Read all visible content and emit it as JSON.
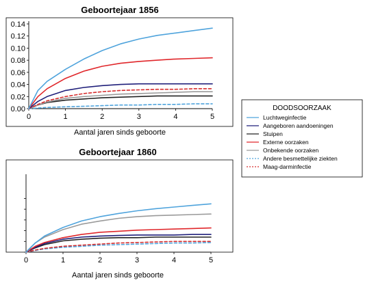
{
  "chart_data": [
    {
      "type": "line",
      "title": "Geboortejaar 1856",
      "xlabel": "Aantal jaren sinds geboorte",
      "ylabel": "",
      "xlim": [
        0,
        5
      ],
      "ylim": [
        0,
        0.14
      ],
      "xticks": [
        "0",
        "1",
        "2",
        "3",
        "4",
        "5"
      ],
      "yticks": [
        "0.00",
        "0.02",
        "0.04",
        "0.06",
        "0.08",
        "0.10",
        "0.12",
        "0.14"
      ],
      "x": [
        0,
        0.25,
        0.5,
        1,
        1.5,
        2,
        2.5,
        3,
        3.5,
        4,
        4.5,
        5
      ],
      "series": [
        {
          "name": "Luchtweginfectie",
          "color": "#4ea3dc",
          "dash": "solid",
          "values": [
            0,
            0.03,
            0.045,
            0.065,
            0.082,
            0.096,
            0.107,
            0.115,
            0.121,
            0.125,
            0.129,
            0.133
          ]
        },
        {
          "name": "Externe oorzaken",
          "color": "#e0262a",
          "dash": "solid",
          "values": [
            0,
            0.02,
            0.033,
            0.05,
            0.062,
            0.07,
            0.075,
            0.078,
            0.08,
            0.082,
            0.083,
            0.084
          ]
        },
        {
          "name": "Aangeboren aandoeningen",
          "color": "#1f1f7a",
          "dash": "solid",
          "values": [
            0,
            0.012,
            0.02,
            0.03,
            0.035,
            0.038,
            0.04,
            0.041,
            0.041,
            0.041,
            0.041,
            0.041
          ]
        },
        {
          "name": "Maag-darminfectie",
          "color": "#d62c2c",
          "dash": "dashed",
          "values": [
            0,
            0.007,
            0.013,
            0.02,
            0.025,
            0.028,
            0.03,
            0.031,
            0.032,
            0.032,
            0.033,
            0.033
          ]
        },
        {
          "name": "Onbekende oorzaken",
          "color": "#9a9a9a",
          "dash": "solid",
          "values": [
            0,
            0.006,
            0.011,
            0.017,
            0.02,
            0.022,
            0.024,
            0.025,
            0.026,
            0.027,
            0.028,
            0.028
          ]
        },
        {
          "name": "Stuipen",
          "color": "#222222",
          "dash": "solid",
          "values": [
            0,
            0.006,
            0.01,
            0.014,
            0.016,
            0.018,
            0.019,
            0.02,
            0.021,
            0.021,
            0.021,
            0.021
          ]
        },
        {
          "name": "Andere besmettelijke ziekten",
          "color": "#4ea3dc",
          "dash": "dashed",
          "values": [
            0,
            0.001,
            0.002,
            0.003,
            0.004,
            0.005,
            0.006,
            0.006,
            0.007,
            0.007,
            0.008,
            0.008
          ]
        }
      ]
    },
    {
      "type": "line",
      "title": "Geboortejaar 1860",
      "xlabel": "Aantal jaren sinds geboorte",
      "ylabel": "",
      "xlim": [
        0,
        5
      ],
      "ylim": [
        0,
        0.14
      ],
      "xticks": [
        "0",
        "1",
        "2",
        "3",
        "4",
        "5"
      ],
      "yticks": [],
      "x": [
        0,
        0.25,
        0.5,
        1,
        1.5,
        2,
        2.5,
        3,
        3.5,
        4,
        4.5,
        5
      ],
      "series": [
        {
          "name": "Luchtweginfectie",
          "color": "#4ea3dc",
          "dash": "solid",
          "values": [
            0,
            0.017,
            0.03,
            0.046,
            0.058,
            0.066,
            0.072,
            0.077,
            0.081,
            0.084,
            0.087,
            0.09
          ]
        },
        {
          "name": "Onbekende oorzaken",
          "color": "#9a9a9a",
          "dash": "solid",
          "values": [
            0,
            0.017,
            0.028,
            0.042,
            0.052,
            0.058,
            0.063,
            0.066,
            0.068,
            0.069,
            0.07,
            0.071
          ]
        },
        {
          "name": "Externe oorzaken",
          "color": "#e0262a",
          "dash": "solid",
          "values": [
            0,
            0.011,
            0.018,
            0.027,
            0.033,
            0.037,
            0.039,
            0.041,
            0.042,
            0.043,
            0.044,
            0.045
          ]
        },
        {
          "name": "Aangeboren aandoeningen",
          "color": "#1f1f7a",
          "dash": "solid",
          "values": [
            0,
            0.009,
            0.016,
            0.024,
            0.028,
            0.03,
            0.031,
            0.032,
            0.032,
            0.032,
            0.033,
            0.033
          ]
        },
        {
          "name": "Stuipen",
          "color": "#222222",
          "dash": "solid",
          "values": [
            0,
            0.008,
            0.014,
            0.021,
            0.024,
            0.026,
            0.027,
            0.027,
            0.028,
            0.028,
            0.028,
            0.028
          ]
        },
        {
          "name": "Maag-darminfectie",
          "color": "#d62c2c",
          "dash": "dashed",
          "values": [
            0,
            0.004,
            0.007,
            0.011,
            0.013,
            0.015,
            0.017,
            0.018,
            0.019,
            0.02,
            0.02,
            0.02
          ]
        },
        {
          "name": "Andere besmettelijke ziekten",
          "color": "#4ea3dc",
          "dash": "dashed",
          "values": [
            0,
            0.003,
            0.006,
            0.009,
            0.011,
            0.013,
            0.014,
            0.015,
            0.016,
            0.017,
            0.017,
            0.018
          ]
        }
      ]
    }
  ],
  "legend": {
    "title": "DOODSOORZAAK",
    "items": [
      {
        "label": "Luchtweginfectie",
        "color": "#4ea3dc",
        "dash": "solid"
      },
      {
        "label": "Aangeboren aandoeningen",
        "color": "#1f1f7a",
        "dash": "solid"
      },
      {
        "label": "Stuipen",
        "color": "#222222",
        "dash": "solid"
      },
      {
        "label": "Externe oorzaken",
        "color": "#e0262a",
        "dash": "solid"
      },
      {
        "label": "Onbekende oorzaken",
        "color": "#9a9a9a",
        "dash": "solid"
      },
      {
        "label": "Andere besmettelijke ziekten",
        "color": "#4ea3dc",
        "dash": "dashed"
      },
      {
        "label": "Maag-darminfectie",
        "color": "#d62c2c",
        "dash": "dashed"
      }
    ]
  }
}
